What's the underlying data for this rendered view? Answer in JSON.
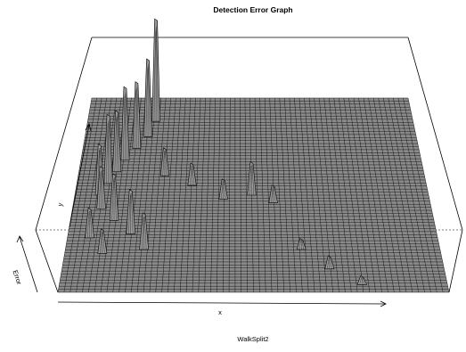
{
  "chart_data": {
    "type": "surface",
    "title": "Detection Error Graph",
    "subtitle": "WalkSplit2",
    "xlabel": "x",
    "ylabel": "y",
    "zlabel": "Error",
    "grid": true,
    "peaks": [
      {
        "u": 0.21,
        "v": 0.12,
        "z": 0.92
      },
      {
        "u": 0.19,
        "v": 0.2,
        "z": 0.7
      },
      {
        "u": 0.16,
        "v": 0.26,
        "z": 0.6
      },
      {
        "u": 0.13,
        "v": 0.32,
        "z": 0.66
      },
      {
        "u": 0.11,
        "v": 0.38,
        "z": 0.55
      },
      {
        "u": 0.09,
        "v": 0.44,
        "z": 0.62
      },
      {
        "u": 0.07,
        "v": 0.5,
        "z": 0.46
      },
      {
        "u": 0.08,
        "v": 0.57,
        "z": 0.38
      },
      {
        "u": 0.12,
        "v": 0.63,
        "z": 0.42
      },
      {
        "u": 0.17,
        "v": 0.7,
        "z": 0.4
      },
      {
        "u": 0.21,
        "v": 0.78,
        "z": 0.33
      },
      {
        "u": 0.1,
        "v": 0.8,
        "z": 0.22
      },
      {
        "u": 0.06,
        "v": 0.72,
        "z": 0.27
      },
      {
        "u": 0.25,
        "v": 0.4,
        "z": 0.25
      },
      {
        "u": 0.33,
        "v": 0.45,
        "z": 0.2
      },
      {
        "u": 0.42,
        "v": 0.52,
        "z": 0.18
      },
      {
        "u": 0.5,
        "v": 0.5,
        "z": 0.3
      },
      {
        "u": 0.56,
        "v": 0.54,
        "z": 0.16
      },
      {
        "u": 0.63,
        "v": 0.78,
        "z": 0.1
      },
      {
        "u": 0.7,
        "v": 0.88,
        "z": 0.12
      },
      {
        "u": 0.78,
        "v": 0.96,
        "z": 0.08
      }
    ]
  }
}
